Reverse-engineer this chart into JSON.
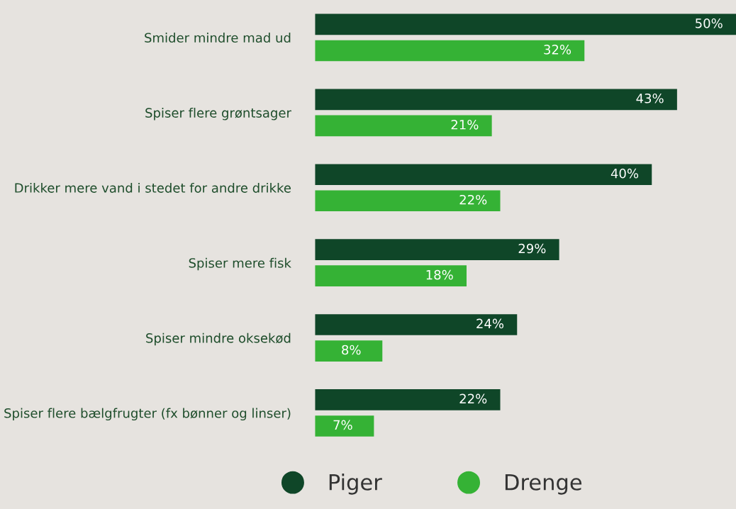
{
  "chart_data": {
    "type": "bar",
    "orientation": "horizontal",
    "legend": "bottom",
    "categories": [
      "Smider mindre mad ud",
      "Spiser flere grøntsager",
      "Drikker mere vand i stedet for andre drikke",
      "Spiser mere fisk",
      "Spiser mindre oksekød",
      "Spiser flere bælgfrugter (fx bønner og linser)"
    ],
    "series": [
      {
        "name": "Piger",
        "color": "#0f4628",
        "values": [
          50,
          43,
          40,
          29,
          24,
          22
        ],
        "value_labels": [
          "50%",
          "43%",
          "40%",
          "29%",
          "24%",
          "22%"
        ]
      },
      {
        "name": "Drenge",
        "color": "#35b235",
        "values": [
          32,
          21,
          22,
          18,
          8,
          7
        ],
        "value_labels": [
          "32%",
          "21%",
          "22%",
          "18%",
          "8%",
          "7%"
        ]
      }
    ]
  }
}
